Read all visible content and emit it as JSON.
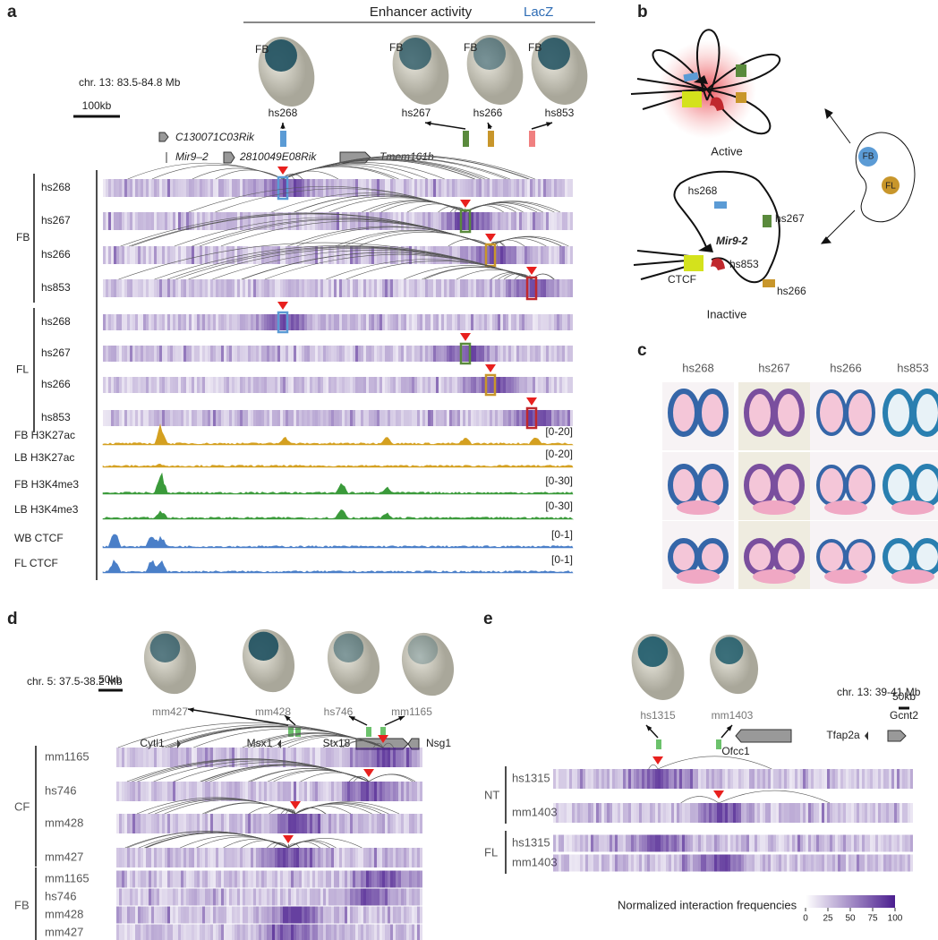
{
  "panels": {
    "a": {
      "label": "a",
      "header": "Enhancer activity",
      "stain": "LacZ",
      "embryo_labels": [
        "FB",
        "FB",
        "FB",
        "FB"
      ],
      "locus": "chr. 13: 83.5-84.8 Mb",
      "scale_bar": "100kb",
      "enhancers": [
        "hs268",
        "hs267",
        "hs266",
        "hs853"
      ],
      "genes": [
        "C130071C03Rik",
        "Mir9–2",
        "2810049E08Rik",
        "Tmem161b"
      ],
      "groups": [
        {
          "name": "FB",
          "tracks": [
            "hs268",
            "hs267",
            "hs266",
            "hs853"
          ]
        },
        {
          "name": "FL",
          "tracks": [
            "hs268",
            "hs267",
            "hs266",
            "hs853"
          ]
        }
      ],
      "chip_tracks": [
        {
          "name": "FB H3K27ac",
          "range": "[0-20]"
        },
        {
          "name": "LB H3K27ac",
          "range": "[0-20]"
        },
        {
          "name": "FB H3K4me3",
          "range": "[0-30]"
        },
        {
          "name": "LB H3K4me3",
          "range": "[0-30]"
        },
        {
          "name": "WB CTCF",
          "range": "[0-1]"
        },
        {
          "name": "FL CTCF",
          "range": "[0-1]"
        }
      ]
    },
    "b": {
      "label": "b",
      "active": "Active",
      "inactive": "Inactive",
      "embryo_labels": [
        "FB",
        "FL"
      ],
      "inactive_labels": [
        "hs268",
        "hs267",
        "Mir9-2",
        "hs853",
        "CTCF",
        "hs266"
      ]
    },
    "c": {
      "label": "c",
      "columns": [
        "hs268",
        "hs267",
        "hs266",
        "hs853"
      ]
    },
    "d": {
      "label": "d",
      "locus": "chr. 5: 37.5-38.2 Mb",
      "scale_bar": "50kb",
      "enhancers": [
        "mm427",
        "mm428",
        "hs746",
        "mm1165"
      ],
      "genes": [
        "Cytl1",
        "Msx1",
        "Stx18",
        "Nsg1"
      ],
      "groups": [
        {
          "name": "CF",
          "tracks": [
            "mm1165",
            "hs746",
            "mm428",
            "mm427"
          ]
        },
        {
          "name": "FB",
          "tracks": [
            "mm1165",
            "hs746",
            "mm428",
            "mm427"
          ]
        }
      ]
    },
    "e": {
      "label": "e",
      "enhancers": [
        "hs1315",
        "mm1403"
      ],
      "locus": "chr. 13: 39-41 Mb",
      "scale_bar": "50kb",
      "genes": [
        "Ofcc1",
        "Tfap2a",
        "Gcnt2"
      ],
      "groups": [
        {
          "name": "NT",
          "tracks": [
            "hs1315",
            "mm1403"
          ]
        },
        {
          "name": "FL",
          "tracks": [
            "hs1315",
            "mm1403"
          ]
        }
      ],
      "colorbar": {
        "title": "Normalized interaction frequencies",
        "ticks": [
          0,
          25,
          50,
          75,
          100
        ]
      }
    }
  }
}
